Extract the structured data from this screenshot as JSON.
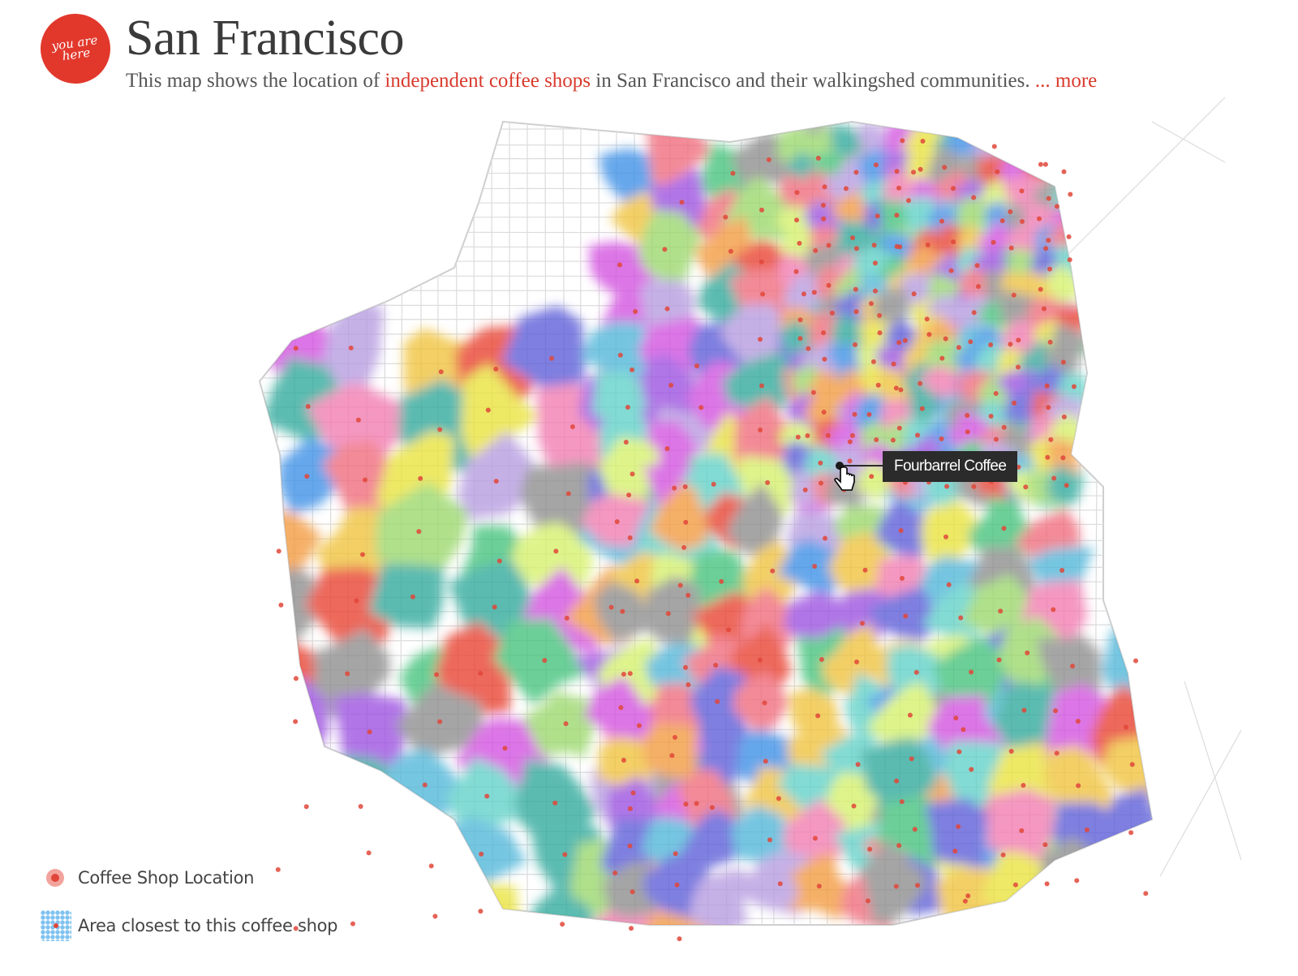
{
  "header": {
    "logo_text": "you are here",
    "title": "San Francisco",
    "subtitle_prefix": "This map shows the location of ",
    "subtitle_highlight": "independent coffee shops",
    "subtitle_suffix": " in San Francisco and their walkingshed communities. ",
    "more_link": "... more",
    "accent_color": "#d93a2c"
  },
  "tooltip": {
    "label": "Fourbarrel Coffee"
  },
  "legend": {
    "shop_label": "Coffee Shop Location",
    "area_label": "Area closest to this coffee shop"
  },
  "palette": [
    "#e8402f",
    "#f06b7a",
    "#f39a3c",
    "#e9e33a",
    "#d6f26a",
    "#9ad86b",
    "#43c27a",
    "#2fa99b",
    "#4fb6d9",
    "#3b8fe6",
    "#5a5cd8",
    "#9b4fe0",
    "#d34fe0",
    "#f27ab0",
    "#8c8c8c",
    "#b69be0",
    "#5fd1c8",
    "#f0c23a"
  ],
  "icons": {
    "cursor": "hand-pointer-icon",
    "shop_marker": "coffee-shop-dot-icon"
  }
}
